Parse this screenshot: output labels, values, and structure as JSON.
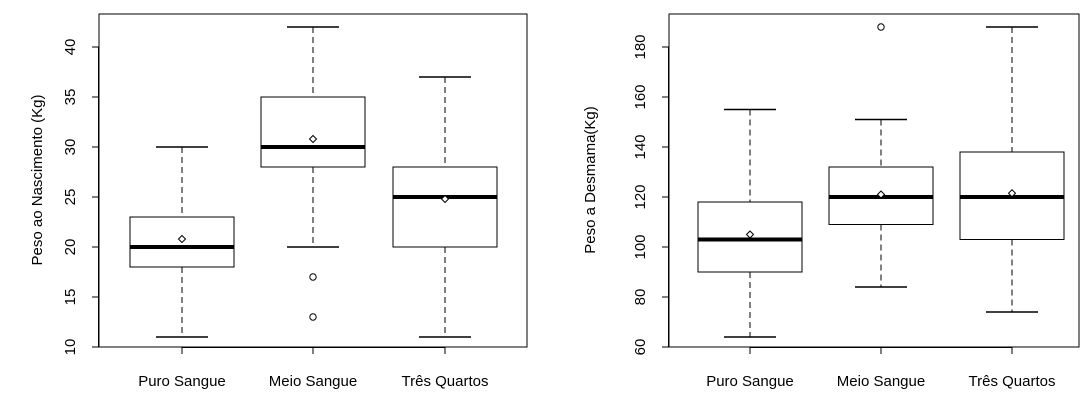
{
  "chart_data": [
    {
      "type": "box",
      "title": "",
      "xlabel": "",
      "ylabel": "Peso ao Nascimento (Kg)",
      "ylim": [
        10,
        43
      ],
      "yticks": [
        10,
        15,
        20,
        25,
        30,
        35,
        40
      ],
      "grid": false,
      "categories": [
        "Puro Sangue",
        "Meio Sangue",
        "Três Quartos"
      ],
      "boxes": [
        {
          "min": 11,
          "q1": 18,
          "median": 20,
          "q3": 23,
          "max": 30,
          "mean": 20.8,
          "outliers": []
        },
        {
          "min": 20,
          "q1": 28,
          "median": 30,
          "q3": 35,
          "max": 42,
          "mean": 30.8,
          "outliers": [
            17,
            13
          ]
        },
        {
          "min": 11,
          "q1": 20,
          "median": 25,
          "q3": 28,
          "max": 37,
          "mean": 24.8,
          "outliers": []
        }
      ]
    },
    {
      "type": "box",
      "title": "",
      "xlabel": "",
      "ylabel": "Peso a Desmama(Kg)",
      "ylim": [
        60,
        192
      ],
      "yticks": [
        60,
        80,
        100,
        120,
        140,
        160,
        180
      ],
      "grid": false,
      "categories": [
        "Puro Sangue",
        "Meio Sangue",
        "Três Quartos"
      ],
      "boxes": [
        {
          "min": 64,
          "q1": 90,
          "median": 103,
          "q3": 118,
          "max": 155,
          "mean": 105,
          "outliers": []
        },
        {
          "min": 84,
          "q1": 109,
          "median": 120,
          "q3": 132,
          "max": 151,
          "mean": 121,
          "outliers": [
            188
          ]
        },
        {
          "min": 74,
          "q1": 103,
          "median": 120,
          "q3": 138,
          "max": 188,
          "mean": 121.5,
          "outliers": []
        }
      ]
    }
  ]
}
